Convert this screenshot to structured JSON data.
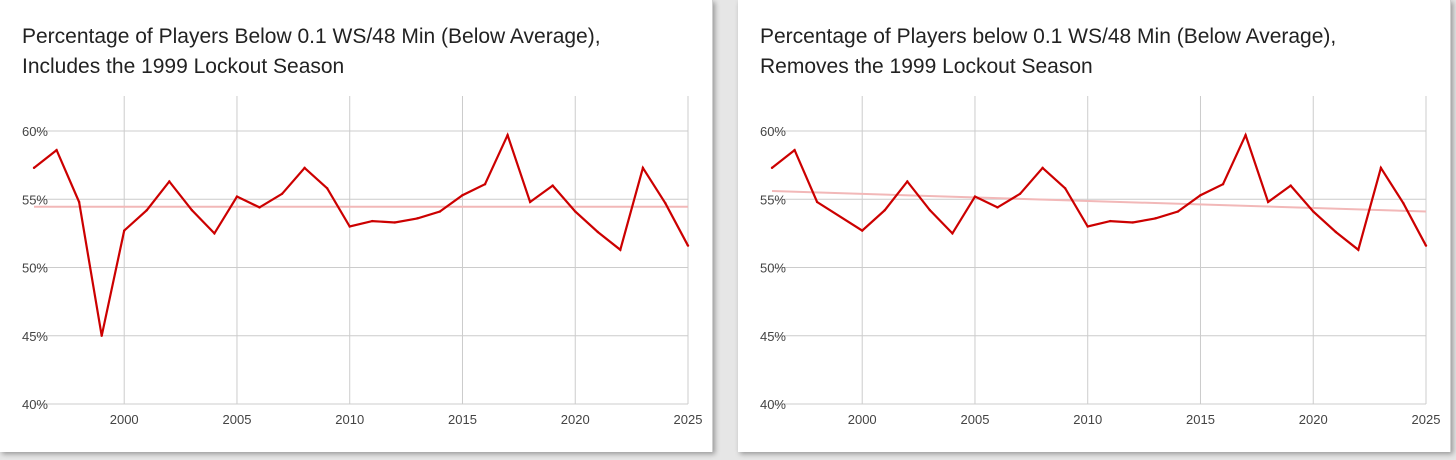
{
  "colors": {
    "series": "#cc0000",
    "trend": "#f2b8b8",
    "grid": "#cccccc"
  },
  "chart_data": [
    {
      "type": "line",
      "title_lines": [
        "Percentage of Players Below 0.1 WS/48 Min (Below Average),",
        "Includes the 1999 Lockout Season"
      ],
      "xlabel": "",
      "ylabel": "",
      "xlim": [
        1996,
        2025
      ],
      "ylim": [
        40,
        60
      ],
      "grid": true,
      "x_ticks": [
        2000,
        2005,
        2010,
        2015,
        2020,
        2025
      ],
      "x_tick_labels": [
        "2000",
        "2005",
        "2010",
        "2015",
        "2020",
        "2025"
      ],
      "y_ticks": [
        40,
        45,
        50,
        55,
        60
      ],
      "y_tick_labels": [
        "40%",
        "45%",
        "50%",
        "55%",
        "60%"
      ],
      "series": [
        {
          "x": [
            1996,
            1997,
            1998,
            1999,
            2000,
            2001,
            2002,
            2003,
            2004,
            2005,
            2006,
            2007,
            2008,
            2009,
            2010,
            2011,
            2012,
            2013,
            2014,
            2015,
            2016,
            2017,
            2018,
            2019,
            2020,
            2021,
            2022,
            2023,
            2024,
            2025
          ],
          "values": [
            57.3,
            58.6,
            54.8,
            45.0,
            52.7,
            54.2,
            56.3,
            54.2,
            52.5,
            55.2,
            54.4,
            55.4,
            57.3,
            55.8,
            53.0,
            53.4,
            53.3,
            53.6,
            54.1,
            55.3,
            56.1,
            59.7,
            54.8,
            56.0,
            54.1,
            52.6,
            51.3,
            57.3,
            54.7,
            51.6
          ]
        }
      ],
      "trendline": {
        "x": [
          1996,
          2025
        ],
        "values": [
          54.45,
          54.45
        ]
      }
    },
    {
      "type": "line",
      "title_lines": [
        "Percentage of Players below 0.1 WS/48 Min (Below Average),",
        "Removes the 1999 Lockout Season"
      ],
      "xlabel": "",
      "ylabel": "",
      "xlim": [
        1996,
        2025
      ],
      "ylim": [
        40,
        60
      ],
      "grid": true,
      "x_ticks": [
        2000,
        2005,
        2010,
        2015,
        2020,
        2025
      ],
      "x_tick_labels": [
        "2000",
        "2005",
        "2010",
        "2015",
        "2020",
        "2025"
      ],
      "y_ticks": [
        40,
        45,
        50,
        55,
        60
      ],
      "y_tick_labels": [
        "40%",
        "45%",
        "50%",
        "55%",
        "60%"
      ],
      "series": [
        {
          "x": [
            1996,
            1997,
            1998,
            2000,
            2001,
            2002,
            2003,
            2004,
            2005,
            2006,
            2007,
            2008,
            2009,
            2010,
            2011,
            2012,
            2013,
            2014,
            2015,
            2016,
            2017,
            2018,
            2019,
            2020,
            2021,
            2022,
            2023,
            2024,
            2025
          ],
          "values": [
            57.3,
            58.6,
            54.8,
            52.7,
            54.2,
            56.3,
            54.2,
            52.5,
            55.2,
            54.4,
            55.4,
            57.3,
            55.8,
            53.0,
            53.4,
            53.3,
            53.6,
            54.1,
            55.3,
            56.1,
            59.7,
            54.8,
            56.0,
            54.1,
            52.6,
            51.3,
            57.3,
            54.7,
            51.6
          ]
        }
      ],
      "trendline": {
        "x": [
          1996,
          2025
        ],
        "values": [
          55.6,
          54.1
        ]
      }
    }
  ]
}
